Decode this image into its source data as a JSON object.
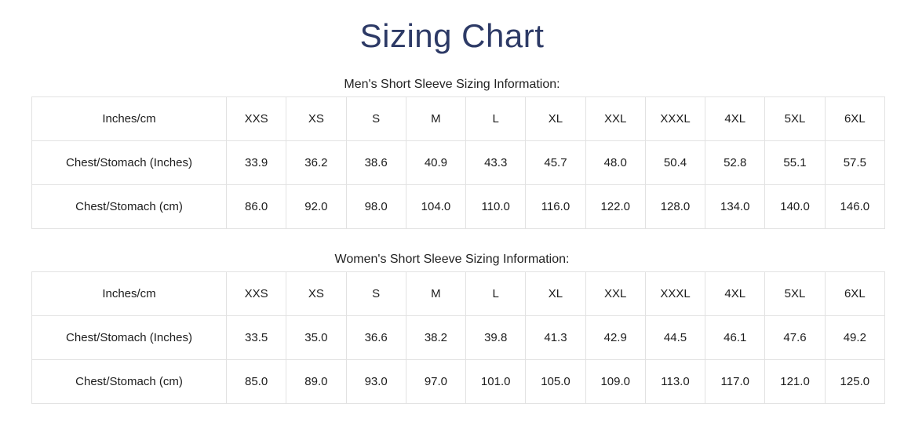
{
  "title": "Sizing Chart",
  "theme": {
    "title_color": "#2d3a66",
    "cell_text_color": "#1d1d1d",
    "inner_border_color": "#e2e2e2",
    "outer_border_color": "#cfcfcf",
    "background_color": "#ffffff"
  },
  "tables": [
    {
      "caption": "Men's Short Sleeve Sizing Information:",
      "corner_header": "Inches/cm",
      "size_headers": [
        "XXS",
        "XS",
        "S",
        "M",
        "L",
        "XL",
        "XXL",
        "XXXL",
        "4XL",
        "5XL",
        "6XL"
      ],
      "rows": [
        {
          "label": "Chest/Stomach (Inches)",
          "values": [
            "33.9",
            "36.2",
            "38.6",
            "40.9",
            "43.3",
            "45.7",
            "48.0",
            "50.4",
            "52.8",
            "55.1",
            "57.5"
          ]
        },
        {
          "label": "Chest/Stomach (cm)",
          "values": [
            "86.0",
            "92.0",
            "98.0",
            "104.0",
            "110.0",
            "116.0",
            "122.0",
            "128.0",
            "134.0",
            "140.0",
            "146.0"
          ]
        }
      ]
    },
    {
      "caption": "Women's Short Sleeve Sizing Information:",
      "corner_header": "Inches/cm",
      "size_headers": [
        "XXS",
        "XS",
        "S",
        "M",
        "L",
        "XL",
        "XXL",
        "XXXL",
        "4XL",
        "5XL",
        "6XL"
      ],
      "rows": [
        {
          "label": "Chest/Stomach (Inches)",
          "values": [
            "33.5",
            "35.0",
            "36.6",
            "38.2",
            "39.8",
            "41.3",
            "42.9",
            "44.5",
            "46.1",
            "47.6",
            "49.2"
          ]
        },
        {
          "label": "Chest/Stomach (cm)",
          "values": [
            "85.0",
            "89.0",
            "93.0",
            "97.0",
            "101.0",
            "105.0",
            "109.0",
            "113.0",
            "117.0",
            "121.0",
            "125.0"
          ]
        }
      ]
    }
  ]
}
